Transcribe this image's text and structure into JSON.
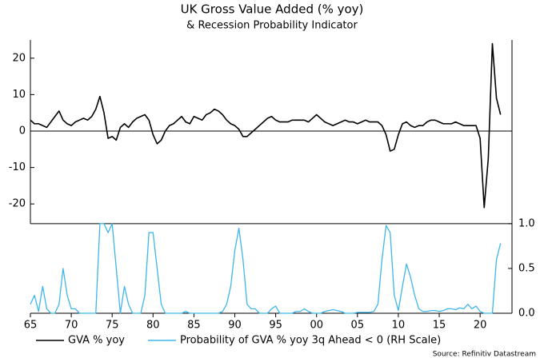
{
  "chart_data": {
    "type": "line",
    "title": "UK Gross Value Added (% yoy)",
    "subtitle": "& Recession Probability Indicator",
    "source": "Source: Refinitiv Datastream",
    "x": [
      1965,
      1965.5,
      1966,
      1966.5,
      1967,
      1967.5,
      1968,
      1968.5,
      1969,
      1969.5,
      1970,
      1970.5,
      1971,
      1971.5,
      1972,
      1972.5,
      1973,
      1973.5,
      1974,
      1974.5,
      1975,
      1975.5,
      1976,
      1976.5,
      1977,
      1977.5,
      1978,
      1978.5,
      1979,
      1979.5,
      1980,
      1980.5,
      1981,
      1981.5,
      1982,
      1982.5,
      1983,
      1983.5,
      1984,
      1984.5,
      1985,
      1985.5,
      1986,
      1986.5,
      1987,
      1987.5,
      1988,
      1988.5,
      1989,
      1989.5,
      1990,
      1990.5,
      1991,
      1991.5,
      1992,
      1992.5,
      1993,
      1993.5,
      1994,
      1994.5,
      1995,
      1995.5,
      1996,
      1996.5,
      1997,
      1997.5,
      1998,
      1998.5,
      1999,
      1999.5,
      2000,
      2000.5,
      2001,
      2001.5,
      2002,
      2002.5,
      2003,
      2003.5,
      2004,
      2004.5,
      2005,
      2005.5,
      2006,
      2006.5,
      2007,
      2007.5,
      2008,
      2008.5,
      2009,
      2009.5,
      2010,
      2010.5,
      2011,
      2011.5,
      2012,
      2012.5,
      2013,
      2013.5,
      2014,
      2014.5,
      2015,
      2015.5,
      2016,
      2016.5,
      2017,
      2017.5,
      2018,
      2018.5,
      2019,
      2019.5,
      2020,
      2020.5,
      2021,
      2021.5,
      2022,
      2022.5
    ],
    "series": [
      {
        "name": "GVA % yoy",
        "color": "#000000",
        "axis": "y",
        "values": [
          3,
          2,
          2,
          1.5,
          1,
          2.5,
          4,
          5.5,
          3,
          2,
          1.5,
          2.5,
          3,
          3.5,
          3,
          4,
          6,
          9.5,
          5,
          -2,
          -1.5,
          -2.5,
          1,
          2,
          1,
          2.5,
          3.5,
          4,
          4.5,
          3,
          -1,
          -3.5,
          -2.5,
          0,
          1.5,
          2,
          3,
          4,
          2.5,
          2,
          4,
          3.5,
          3,
          4.5,
          5,
          6,
          5.5,
          4.5,
          3,
          2,
          1.5,
          0.5,
          -1.5,
          -1.5,
          -0.5,
          0.5,
          1.5,
          2.5,
          3.5,
          4,
          3,
          2.5,
          2.5,
          2.5,
          3,
          3,
          3,
          3,
          2.5,
          3.5,
          4.5,
          3.5,
          2.5,
          2,
          1.5,
          2,
          2.5,
          3,
          2.5,
          2.5,
          2,
          2.5,
          3,
          2.5,
          2.5,
          2.5,
          1.5,
          -1,
          -5.5,
          -5,
          -1,
          2,
          2.5,
          1.5,
          1,
          1.5,
          1.5,
          2.5,
          3,
          3,
          2.5,
          2,
          2,
          2,
          2.5,
          2,
          1.5,
          1.5,
          1.5,
          1.5,
          -2,
          -21,
          -7.5,
          24,
          9,
          4.5
        ]
      },
      {
        "name": "Probability of GVA % yoy 3q Ahead < 0 (RH Scale)",
        "color": "#3fb6ea",
        "axis": "y2",
        "values": [
          0.1,
          0.2,
          0.02,
          0.3,
          0.05,
          0,
          0,
          0.1,
          0.5,
          0.2,
          0.05,
          0.05,
          0,
          0,
          0,
          0,
          0,
          1,
          1,
          0.9,
          1,
          0.5,
          0,
          0.3,
          0.1,
          0,
          0,
          0,
          0.2,
          0.9,
          0.9,
          0.5,
          0.1,
          0,
          0,
          0,
          0,
          0,
          0.02,
          0,
          0,
          0,
          0,
          0,
          0,
          0,
          0,
          0.02,
          0.1,
          0.3,
          0.7,
          0.95,
          0.6,
          0.1,
          0.05,
          0.05,
          0,
          0,
          0,
          0.05,
          0.08,
          0,
          0,
          0,
          0,
          0.02,
          0.02,
          0.05,
          0.02,
          0,
          0,
          0,
          0.02,
          0.03,
          0.04,
          0.03,
          0.02,
          0,
          0,
          0,
          0.01,
          0.01,
          0.01,
          0.01,
          0.02,
          0.1,
          0.6,
          0.98,
          0.9,
          0.2,
          0.03,
          0.3,
          0.55,
          0.4,
          0.2,
          0.05,
          0.02,
          0.02,
          0.03,
          0.03,
          0.02,
          0.03,
          0.05,
          0.05,
          0.04,
          0.06,
          0.05,
          0.1,
          0.05,
          0.08,
          0.02,
          0,
          0,
          0,
          0.6,
          0.78
        ]
      }
    ],
    "xlim": [
      1965,
      2023.9
    ],
    "xticks": [
      {
        "value": 1965,
        "label": "65"
      },
      {
        "value": 1970,
        "label": "70"
      },
      {
        "value": 1975,
        "label": "75"
      },
      {
        "value": 1980,
        "label": "80"
      },
      {
        "value": 1985,
        "label": "85"
      },
      {
        "value": 1990,
        "label": "90"
      },
      {
        "value": 1995,
        "label": "95"
      },
      {
        "value": 2000,
        "label": "00"
      },
      {
        "value": 2005,
        "label": "05"
      },
      {
        "value": 2010,
        "label": "10"
      },
      {
        "value": 2015,
        "label": "15"
      },
      {
        "value": 2020,
        "label": "20"
      }
    ],
    "ylim": [
      -50,
      25
    ],
    "yticks": [
      -20,
      -10,
      0,
      10,
      20
    ],
    "y2lim": [
      0,
      3.05
    ],
    "y2ticks": [
      {
        "value": 0,
        "label": "0.0"
      },
      {
        "value": 0.5,
        "label": "0.5"
      },
      {
        "value": 1,
        "label": "1.0"
      }
    ],
    "legend": "bottom"
  }
}
